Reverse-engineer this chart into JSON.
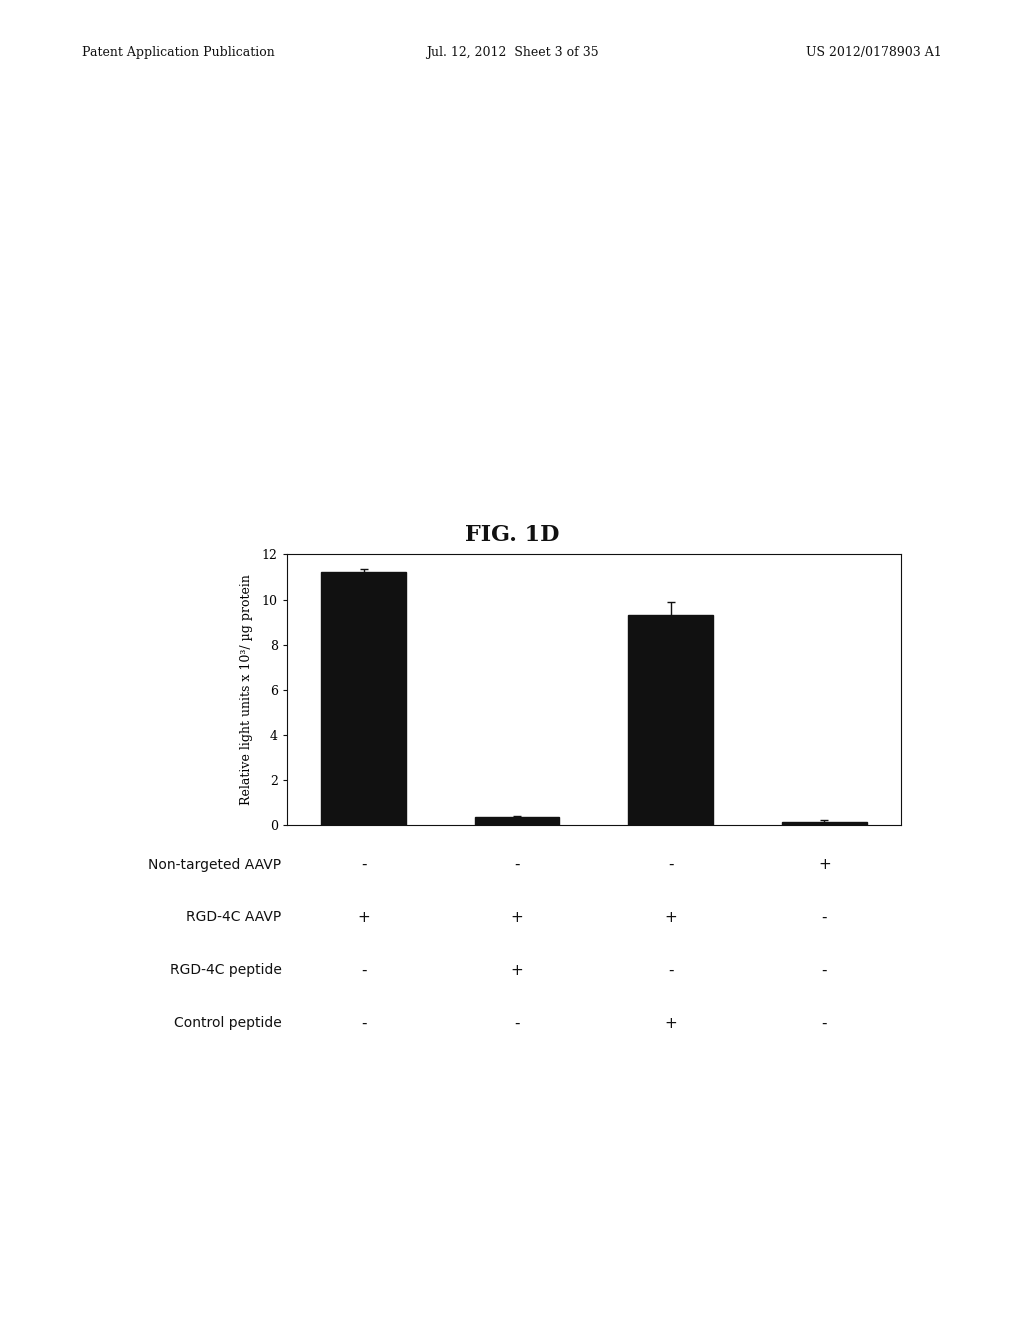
{
  "title": "FIG. 1D",
  "bar_values": [
    11.2,
    0.35,
    9.3,
    0.15
  ],
  "bar_errors": [
    0.15,
    0.05,
    0.6,
    0.05
  ],
  "bar_color": "#111111",
  "bar_positions": [
    1,
    2,
    3,
    4
  ],
  "bar_width": 0.55,
  "ylim": [
    0,
    12
  ],
  "yticks": [
    0,
    2,
    4,
    6,
    8,
    10,
    12
  ],
  "ylabel": "Relative light units x 10³/ µg protein",
  "background_color": "#ffffff",
  "page_color": "#ffffff",
  "header_left": "Patent Application Publication",
  "header_mid": "Jul. 12, 2012  Sheet 3 of 35",
  "header_right": "US 2012/0178903 A1",
  "table_rows": [
    {
      "label": "Non-targeted AAVP",
      "cols": [
        "-",
        "-",
        "-",
        "+"
      ]
    },
    {
      "label": "RGD-4C AAVP",
      "cols": [
        "+",
        "+",
        "+",
        "-"
      ]
    },
    {
      "label": "RGD-4C peptide",
      "cols": [
        "-",
        "+",
        "-",
        "-"
      ]
    },
    {
      "label": "Control peptide",
      "cols": [
        "-",
        "-",
        "+",
        "-"
      ]
    }
  ]
}
